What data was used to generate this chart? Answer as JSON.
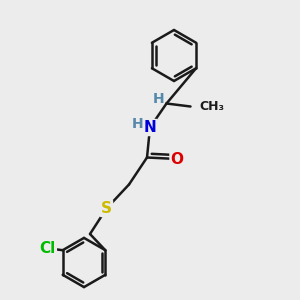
{
  "background_color": "#ececec",
  "bond_color": "#1a1a1a",
  "bond_width": 1.8,
  "atom_colors": {
    "N": "#0000dd",
    "O": "#dd0000",
    "S": "#ccbb00",
    "Cl": "#00bb00",
    "H": "#5588aa",
    "C": "#1a1a1a"
  },
  "font_size_atom": 11,
  "font_size_small": 9
}
